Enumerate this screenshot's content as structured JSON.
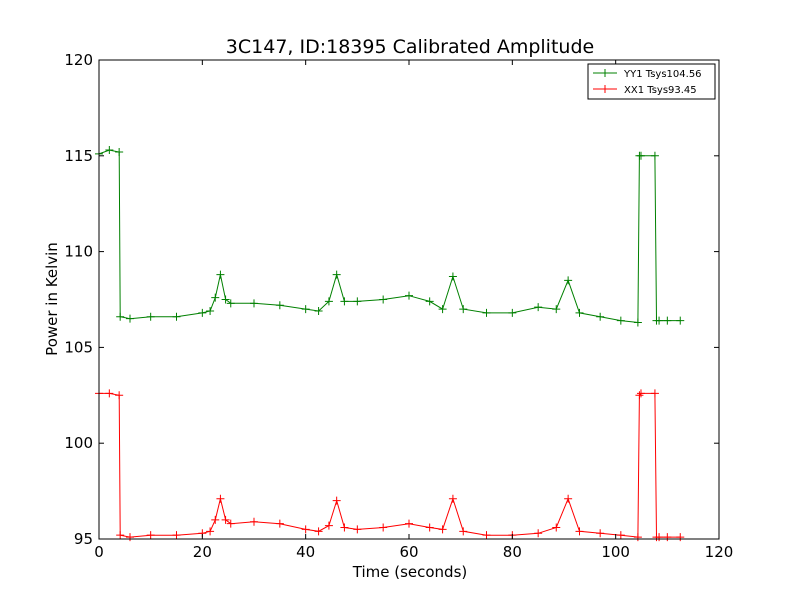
{
  "chart_data": {
    "type": "line",
    "title": "3C147, ID:18395 Calibrated Amplitude",
    "xlabel": "Time (seconds)",
    "ylabel": "Power in Kelvin",
    "xlim": [
      0,
      120
    ],
    "ylim": [
      95,
      120
    ],
    "xticks": [
      "0",
      "20",
      "40",
      "60",
      "80",
      "100",
      "120"
    ],
    "yticks": [
      "95",
      "100",
      "105",
      "110",
      "115",
      "120"
    ],
    "grid": false,
    "legend_position": "top-right",
    "series": [
      {
        "name": "YY1 Tsys104.56",
        "color": "#008000",
        "marker": "+",
        "x": [
          0,
          2,
          3.9,
          4.1,
          6,
          10,
          15,
          20,
          21.5,
          22.5,
          23.5,
          24.5,
          25.5,
          30,
          35,
          40,
          42.5,
          44.5,
          46,
          47.5,
          50,
          55,
          60,
          64,
          66.5,
          68.5,
          70.5,
          75,
          80,
          85,
          88.5,
          90.8,
          93,
          97,
          101,
          104.3,
          104.6,
          104.9,
          107.6,
          107.9,
          108.4,
          110,
          112.5
        ],
        "y": [
          115.1,
          115.3,
          115.2,
          106.6,
          106.5,
          106.6,
          106.6,
          106.8,
          106.9,
          107.6,
          108.8,
          107.5,
          107.3,
          107.3,
          107.2,
          107.0,
          106.9,
          107.4,
          108.8,
          107.4,
          107.4,
          107.5,
          107.7,
          107.4,
          107.0,
          108.7,
          107.0,
          106.8,
          106.8,
          107.1,
          107.0,
          108.5,
          106.8,
          106.6,
          106.4,
          106.3,
          115.0,
          115.0,
          115.0,
          106.4,
          106.4,
          106.4,
          106.4
        ]
      },
      {
        "name": "XX1 Tsys93.45",
        "color": "#ff0000",
        "marker": "+",
        "x": [
          0,
          2,
          3.9,
          4.1,
          6,
          10,
          15,
          20,
          21.5,
          22.5,
          23.5,
          24.5,
          25.5,
          30,
          35,
          40,
          42.5,
          44.5,
          46,
          47.5,
          50,
          55,
          60,
          64,
          66.5,
          68.5,
          70.5,
          75,
          80,
          85,
          88.5,
          90.8,
          93,
          97,
          101,
          104.3,
          104.6,
          104.9,
          107.6,
          107.9,
          108.4,
          110,
          112.5
        ],
        "y": [
          102.6,
          102.6,
          102.5,
          95.2,
          95.1,
          95.2,
          95.2,
          95.3,
          95.4,
          96.0,
          97.1,
          96.0,
          95.8,
          95.9,
          95.8,
          95.5,
          95.4,
          95.7,
          97.0,
          95.6,
          95.5,
          95.6,
          95.8,
          95.6,
          95.5,
          97.1,
          95.4,
          95.2,
          95.2,
          95.3,
          95.6,
          97.1,
          95.4,
          95.3,
          95.2,
          95.1,
          102.5,
          102.6,
          102.6,
          95.1,
          95.1,
          95.1,
          95.1
        ]
      }
    ]
  }
}
